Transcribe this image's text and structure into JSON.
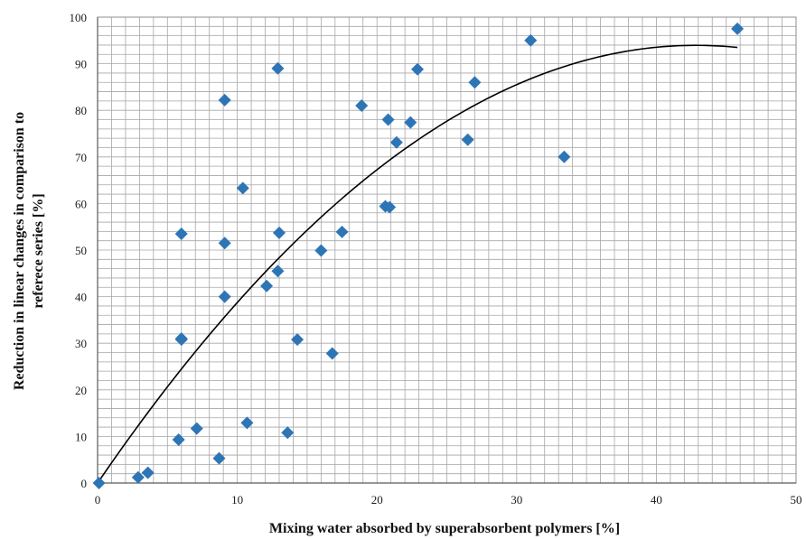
{
  "chart_data": {
    "type": "scatter",
    "title": "",
    "xlabel": "Mixing water absorbed by superabsorbent polymers [%]",
    "ylabel_lines": [
      "Reduction in linear changes in comparison to",
      "referece series [%]"
    ],
    "xlim": [
      0,
      50
    ],
    "ylim": [
      0,
      100
    ],
    "x_ticks": [
      0,
      10,
      20,
      30,
      40,
      50
    ],
    "y_ticks": [
      0,
      10,
      20,
      30,
      40,
      50,
      60,
      70,
      80,
      90,
      100
    ],
    "x_minor_step": 1,
    "y_minor_step": 2,
    "grid": true,
    "legend": false,
    "marker": "diamond",
    "marker_color": "#2E75B6",
    "trend_color": "#000000",
    "grid_color": "#a6a6a6",
    "points": [
      {
        "x": 0.1,
        "y": 0
      },
      {
        "x": 2.9,
        "y": 1.2
      },
      {
        "x": 3.6,
        "y": 2.2
      },
      {
        "x": 5.8,
        "y": 9.3
      },
      {
        "x": 6.0,
        "y": 31.0
      },
      {
        "x": 6.0,
        "y": 30.8
      },
      {
        "x": 6.0,
        "y": 53.5
      },
      {
        "x": 7.1,
        "y": 11.7
      },
      {
        "x": 8.7,
        "y": 5.3
      },
      {
        "x": 9.1,
        "y": 40.0
      },
      {
        "x": 9.1,
        "y": 51.5
      },
      {
        "x": 9.1,
        "y": 82.2
      },
      {
        "x": 10.4,
        "y": 63.3
      },
      {
        "x": 10.7,
        "y": 12.9
      },
      {
        "x": 12.1,
        "y": 42.3
      },
      {
        "x": 12.9,
        "y": 45.5
      },
      {
        "x": 12.9,
        "y": 89.0
      },
      {
        "x": 13.0,
        "y": 53.7
      },
      {
        "x": 13.6,
        "y": 10.8
      },
      {
        "x": 14.3,
        "y": 30.8
      },
      {
        "x": 16.0,
        "y": 49.9
      },
      {
        "x": 16.8,
        "y": 27.8
      },
      {
        "x": 17.5,
        "y": 53.9
      },
      {
        "x": 18.9,
        "y": 81.0
      },
      {
        "x": 20.6,
        "y": 59.4
      },
      {
        "x": 20.8,
        "y": 78.0
      },
      {
        "x": 20.9,
        "y": 59.2
      },
      {
        "x": 21.4,
        "y": 73.1
      },
      {
        "x": 22.4,
        "y": 77.4
      },
      {
        "x": 22.9,
        "y": 88.8
      },
      {
        "x": 26.5,
        "y": 73.7
      },
      {
        "x": 27.0,
        "y": 86.0
      },
      {
        "x": 31.0,
        "y": 95.0
      },
      {
        "x": 33.4,
        "y": 70.0
      },
      {
        "x": 45.8,
        "y": 97.5
      }
    ],
    "trendline": {
      "type": "polynomial",
      "coefficients": [
        0,
        4.3864,
        -0.0512
      ],
      "x_range": [
        0,
        45.8
      ]
    }
  }
}
